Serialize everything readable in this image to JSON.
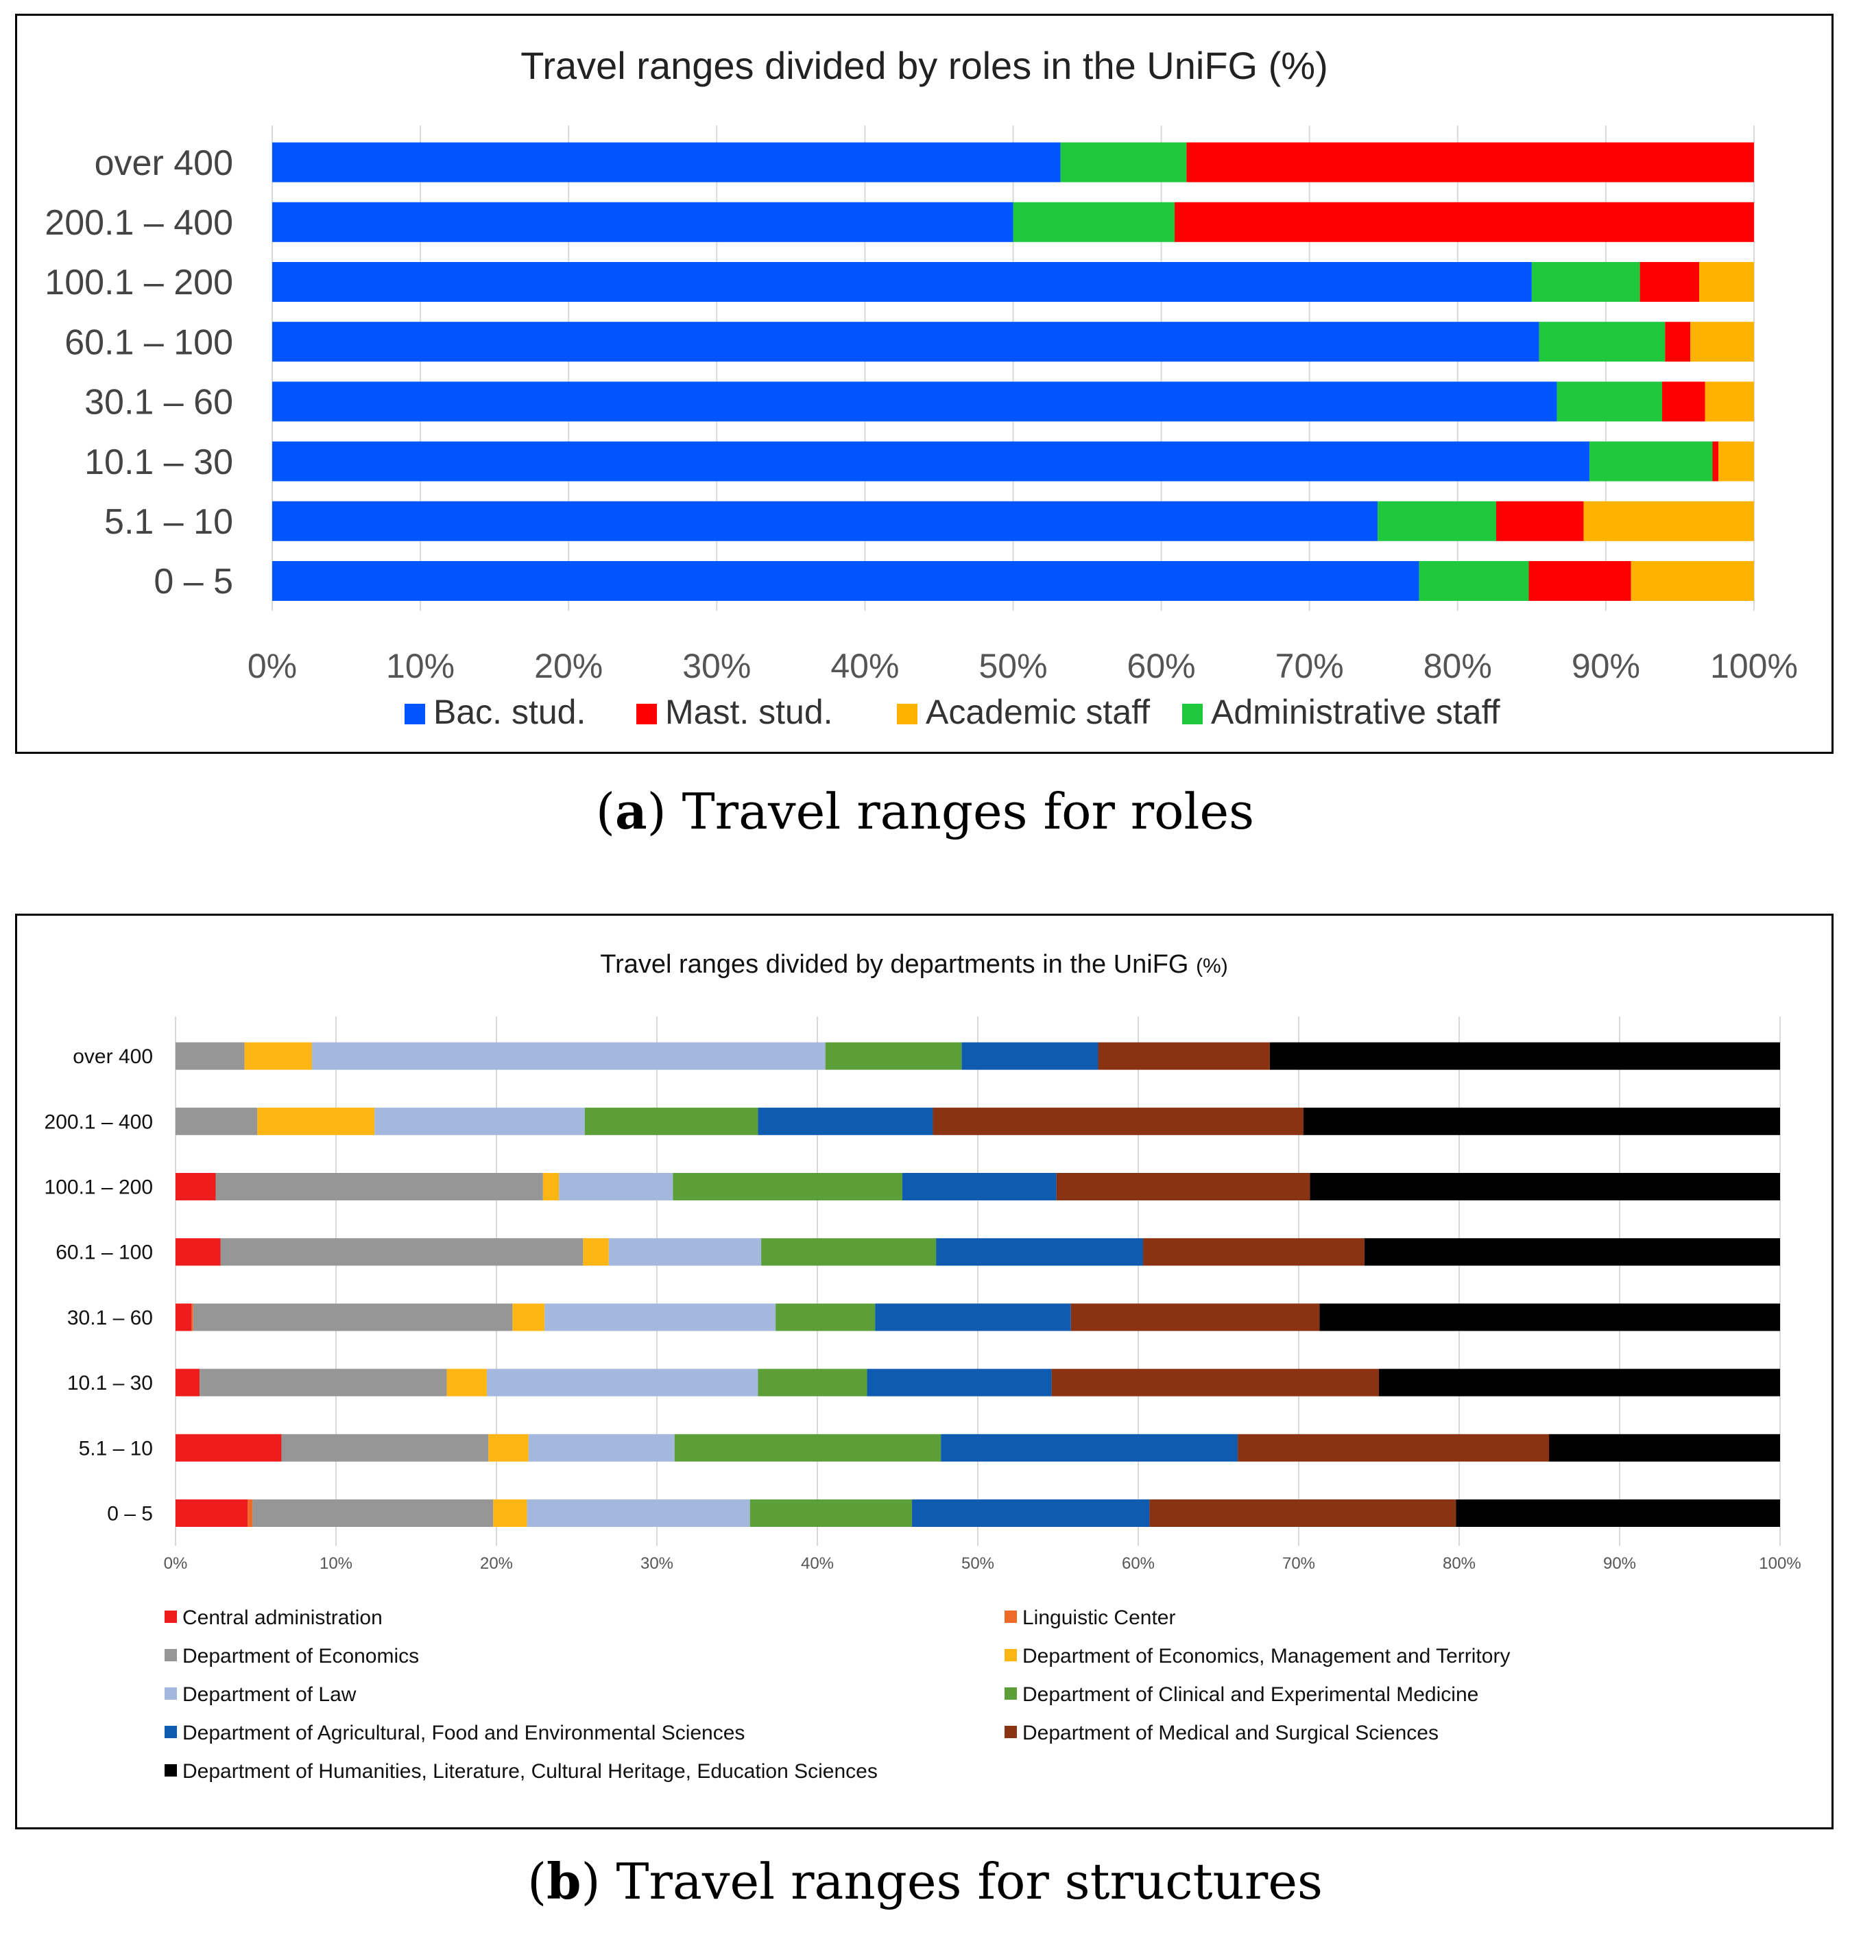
{
  "figure": {
    "caption_a": {
      "letter": "a",
      "text": "Travel ranges for roles"
    },
    "caption_b": {
      "letter": "b",
      "text": "Travel ranges for structures"
    }
  },
  "chart_data": [
    {
      "type": "bar",
      "orientation": "horizontal",
      "stacked": true,
      "title": "Travel ranges divided by roles in the UniFG",
      "title_suffix": "(%)",
      "categories": [
        "over 400",
        "200.1 – 400",
        "100.1 – 200",
        "60.1 – 100",
        "30.1 – 60",
        "10.1 – 30",
        "5.1 – 10",
        "0 – 5"
      ],
      "xlim": [
        0,
        100
      ],
      "xticks": [
        "0%",
        "10%",
        "20%",
        "30%",
        "40%",
        "50%",
        "60%",
        "70%",
        "80%",
        "90%",
        "100%"
      ],
      "grid": true,
      "legend_position": "bottom",
      "series": [
        {
          "name": "Bac. stud.",
          "color": "#0055ff",
          "values": [
            53.2,
            50.0,
            85.0,
            85.5,
            86.7,
            88.9,
            74.6,
            77.4
          ]
        },
        {
          "name": "Administrative staff",
          "color": "#1fc83c",
          "values": [
            8.5,
            10.9,
            7.3,
            8.5,
            7.1,
            8.3,
            8.0,
            7.4
          ]
        },
        {
          "name": "Mast. stud.",
          "color": "#ff0000",
          "values": [
            38.3,
            39.1,
            4.0,
            1.7,
            2.9,
            0.4,
            5.9,
            6.9
          ]
        },
        {
          "name": "Academic staff",
          "color": "#ffb300",
          "values": [
            0,
            0,
            3.7,
            4.3,
            3.3,
            2.4,
            11.5,
            8.3
          ]
        }
      ],
      "legend_order": [
        "Bac. stud.",
        "Mast. stud.",
        "Academic staff",
        "Administrative staff"
      ]
    },
    {
      "type": "bar",
      "orientation": "horizontal",
      "stacked": true,
      "title": "Travel ranges divided by departments in the UniFG",
      "title_suffix": "(%)",
      "categories": [
        "over 400",
        "200.1 – 400",
        "100.1 – 200",
        "60.1 – 100",
        "30.1 – 60",
        "10.1 – 30",
        "5.1 – 10",
        "0 – 5"
      ],
      "xlim": [
        0,
        100
      ],
      "xticks": [
        "0%",
        "10%",
        "20%",
        "30%",
        "40%",
        "50%",
        "60%",
        "70%",
        "80%",
        "90%",
        "100%"
      ],
      "grid": true,
      "legend_position": "bottom",
      "series": [
        {
          "name": "Central administration",
          "color": "#ee1c1c",
          "values": [
            0,
            0,
            2.5,
            2.8,
            1.0,
            1.5,
            6.6,
            4.5
          ]
        },
        {
          "name": "Linguistic Center",
          "color": "#ed6a28",
          "values": [
            0,
            0,
            0,
            0,
            0.1,
            0,
            0,
            0.3
          ]
        },
        {
          "name": "Department of Economics",
          "color": "#969696",
          "values": [
            4.3,
            5.1,
            20.4,
            22.6,
            19.9,
            15.4,
            12.9,
            15.0
          ]
        },
        {
          "name": "Department of Economics, Management and Territory",
          "color": "#fdb614",
          "values": [
            4.2,
            7.3,
            1.0,
            1.6,
            2.0,
            2.5,
            2.5,
            2.1
          ]
        },
        {
          "name": "Department of Law",
          "color": "#a4b8de",
          "values": [
            32.0,
            13.1,
            7.1,
            9.5,
            14.4,
            16.9,
            9.1,
            13.9
          ]
        },
        {
          "name": "Department of Clinical and Experimental Medicine",
          "color": "#5c9f39",
          "values": [
            8.5,
            10.8,
            14.3,
            10.9,
            6.2,
            6.8,
            16.6,
            10.1
          ]
        },
        {
          "name": "Department of Agricultural, Food and Environmental Sciences",
          "color": "#0f5bb0",
          "values": [
            8.5,
            10.9,
            9.6,
            12.9,
            12.2,
            11.5,
            18.5,
            14.8
          ]
        },
        {
          "name": "Department of Medical and Surgical Sciences",
          "color": "#8a3312",
          "values": [
            10.7,
            23.1,
            15.8,
            13.8,
            15.5,
            20.4,
            19.4,
            19.1
          ]
        },
        {
          "name": "Department of Humanities, Literature, Cultural Heritage, Education Sciences",
          "color": "#000000",
          "values": [
            31.8,
            29.7,
            29.3,
            25.9,
            28.7,
            25.0,
            14.4,
            20.2
          ]
        }
      ]
    }
  ]
}
